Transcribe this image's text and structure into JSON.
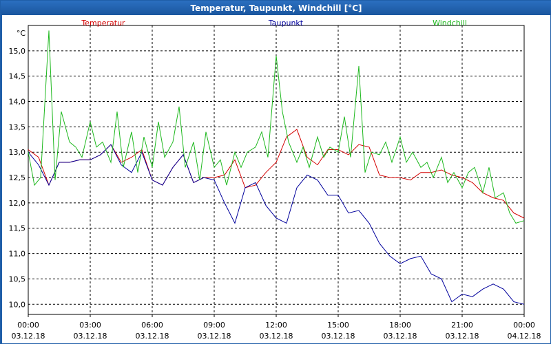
{
  "window": {
    "title": "Temperatur, Taupunkt, Windchill [°C]"
  },
  "chart_data": {
    "type": "line",
    "title": "Temperatur, Taupunkt, Windchill [°C]",
    "ylabel": "°C",
    "ylim": [
      9.8,
      15.5
    ],
    "y_ticks": [
      "15,0",
      "14,5",
      "14,0",
      "13,5",
      "13,0",
      "12,5",
      "12,0",
      "11,5",
      "11,0",
      "10,5",
      "10,0"
    ],
    "y_tick_values": [
      15.0,
      14.5,
      14.0,
      13.5,
      13.0,
      12.5,
      12.0,
      11.5,
      11.0,
      10.5,
      10.0
    ],
    "x_ticks": [
      {
        "time": "00:00",
        "date": "03.12.18"
      },
      {
        "time": "03:00",
        "date": "03.12.18"
      },
      {
        "time": "06:00",
        "date": "03.12.18"
      },
      {
        "time": "09:00",
        "date": "03.12.18"
      },
      {
        "time": "12:00",
        "date": "03.12.18"
      },
      {
        "time": "15:00",
        "date": "03.12.18"
      },
      {
        "time": "18:00",
        "date": "03.12.18"
      },
      {
        "time": "21:00",
        "date": "03.12.18"
      },
      {
        "time": "00:00",
        "date": "04.12.18"
      }
    ],
    "grid": true,
    "legend_position": "top",
    "series": [
      {
        "name": "Temperatur",
        "color": "#d40000",
        "x": [
          0,
          0.5,
          1,
          1.5,
          2,
          2.5,
          3,
          3.5,
          4,
          4.5,
          5,
          5.5,
          6,
          6.5,
          7,
          7.5,
          8,
          8.5,
          9,
          9.5,
          10,
          10.5,
          11,
          11.5,
          12,
          12.5,
          13,
          13.5,
          14,
          14.5,
          15,
          15.5,
          16,
          16.5,
          17,
          17.5,
          18,
          18.5,
          19,
          19.5,
          20,
          20.5,
          21,
          21.5,
          22,
          22.5,
          23,
          23.5,
          24
        ],
        "y": [
          13.05,
          12.9,
          12.35,
          12.8,
          12.8,
          12.85,
          12.85,
          12.95,
          13.15,
          12.8,
          12.9,
          13.05,
          12.45,
          12.35,
          12.7,
          12.95,
          12.4,
          12.5,
          12.5,
          12.55,
          12.85,
          12.3,
          12.35,
          12.6,
          12.8,
          13.3,
          13.45,
          12.9,
          12.75,
          13.05,
          13.05,
          12.95,
          13.15,
          13.1,
          12.55,
          12.5,
          12.5,
          12.45,
          12.6,
          12.6,
          12.65,
          12.55,
          12.5,
          12.4,
          12.2,
          12.1,
          12.05,
          11.8,
          11.7
        ]
      },
      {
        "name": "Taupunkt",
        "color": "#00009c",
        "x": [
          0,
          0.5,
          1,
          1.5,
          2,
          2.5,
          3,
          3.5,
          4,
          4.5,
          5,
          5.5,
          6,
          6.5,
          7,
          7.5,
          8,
          8.5,
          9,
          9.5,
          10,
          10.5,
          11,
          11.5,
          12,
          12.5,
          13,
          13.5,
          14,
          14.5,
          15,
          15.5,
          16,
          16.5,
          17,
          17.5,
          18,
          18.5,
          19,
          19.5,
          20,
          20.5,
          21,
          21.5,
          22,
          22.5,
          23,
          23.5,
          24
        ],
        "y": [
          13.0,
          12.75,
          12.35,
          12.8,
          12.8,
          12.85,
          12.85,
          12.95,
          13.15,
          12.75,
          12.6,
          13.0,
          12.45,
          12.35,
          12.7,
          12.95,
          12.4,
          12.5,
          12.45,
          12.0,
          11.6,
          12.3,
          12.4,
          11.95,
          11.7,
          11.6,
          12.3,
          12.55,
          12.45,
          12.15,
          12.15,
          11.8,
          11.85,
          11.6,
          11.2,
          10.95,
          10.8,
          10.9,
          10.95,
          10.6,
          10.5,
          10.05,
          10.2,
          10.15,
          10.3,
          10.4,
          10.3,
          10.05,
          10.0
        ]
      },
      {
        "name": "Windchill",
        "color": "#1db81d",
        "x": [
          0,
          0.3,
          0.6,
          1,
          1.3,
          1.6,
          2,
          2.3,
          2.6,
          3,
          3.3,
          3.6,
          4,
          4.3,
          4.6,
          5,
          5.3,
          5.6,
          6,
          6.3,
          6.6,
          7,
          7.3,
          7.6,
          8,
          8.3,
          8.6,
          9,
          9.3,
          9.6,
          10,
          10.3,
          10.6,
          11,
          11.3,
          11.6,
          12,
          12.3,
          12.6,
          13,
          13.3,
          13.6,
          14,
          14.3,
          14.6,
          15,
          15.3,
          15.6,
          16,
          16.3,
          16.6,
          17,
          17.3,
          17.6,
          18,
          18.3,
          18.6,
          19,
          19.3,
          19.6,
          20,
          20.3,
          20.6,
          21,
          21.3,
          21.6,
          22,
          22.3,
          22.6,
          23,
          23.3,
          23.6,
          24
        ],
        "y": [
          13.0,
          12.35,
          12.5,
          15.4,
          12.45,
          13.8,
          13.2,
          13.1,
          12.9,
          13.6,
          13.1,
          13.2,
          12.8,
          13.8,
          12.7,
          13.4,
          12.6,
          13.3,
          12.7,
          13.6,
          12.9,
          13.2,
          13.9,
          12.7,
          13.2,
          12.45,
          13.4,
          12.7,
          12.85,
          12.35,
          13.0,
          12.7,
          13.0,
          13.1,
          13.4,
          12.9,
          14.9,
          13.8,
          13.2,
          12.8,
          13.1,
          12.7,
          13.3,
          12.9,
          13.1,
          13.0,
          13.7,
          12.9,
          14.7,
          12.6,
          13.0,
          12.95,
          13.2,
          12.8,
          13.3,
          12.8,
          13.0,
          12.7,
          12.8,
          12.5,
          12.9,
          12.4,
          12.6,
          12.3,
          12.6,
          12.7,
          12.2,
          12.7,
          12.1,
          12.2,
          11.8,
          11.6,
          11.65
        ]
      }
    ]
  }
}
